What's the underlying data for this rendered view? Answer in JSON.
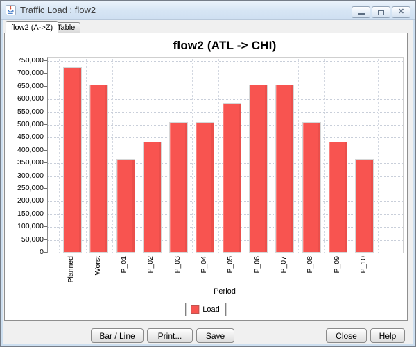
{
  "window": {
    "title": "Traffic Load : flow2",
    "app_icon": "java-coffee-cup-icon",
    "controls": {
      "minimize": "minimize-icon",
      "maximize": "maximize-icon",
      "close": "close-icon"
    }
  },
  "tabs": [
    {
      "label": "flow2 (A->Z)",
      "active": true
    },
    {
      "label": "Table",
      "active": false
    }
  ],
  "chart_data": {
    "type": "bar",
    "title": "flow2 (ATL -> CHI)",
    "xlabel": "Period",
    "ylabel": "",
    "categories": [
      "Planned",
      "Worst",
      "P_01",
      "P_02",
      "P_03",
      "P_04",
      "P_05",
      "P_06",
      "P_07",
      "P_08",
      "P_09",
      "P_10"
    ],
    "series": [
      {
        "name": "Load",
        "color": "#f85450",
        "values": [
          726000,
          657000,
          366000,
          436000,
          511000,
          511000,
          583000,
          657000,
          657000,
          511000,
          436000,
          366000
        ]
      }
    ],
    "ylim": [
      0,
      750000
    ],
    "ytick_step": 50000,
    "grid": "dotted",
    "legend_position": "bottom",
    "x_tick_rotation": -90
  },
  "buttons": {
    "bar_line": "Bar / Line",
    "print": "Print...",
    "save": "Save",
    "close": "Close",
    "help": "Help"
  },
  "colors": {
    "bar": "#f85450",
    "titlebar": "#d9e7f5",
    "window_frame": "#cddff0",
    "content_background": "#f0f0f0"
  }
}
